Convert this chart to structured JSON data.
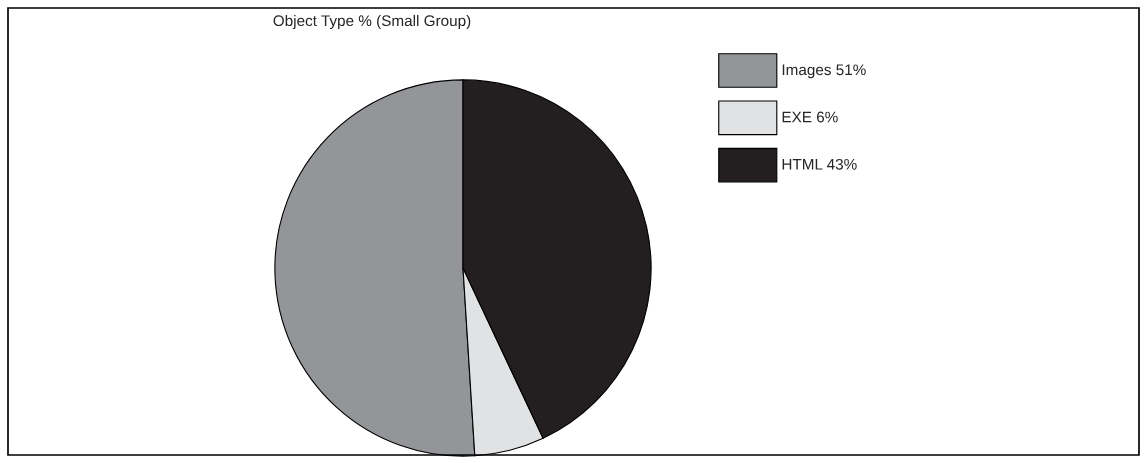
{
  "chart_data": {
    "type": "pie",
    "title": "Object Type % (Small Group)",
    "categories": [
      "Images 51%",
      "EXE 6%",
      "HTML 43%"
    ],
    "values": [
      51,
      6,
      43
    ],
    "colors": [
      "#939598",
      "#e1e2e3",
      "#231f20"
    ],
    "legend": "top right"
  }
}
